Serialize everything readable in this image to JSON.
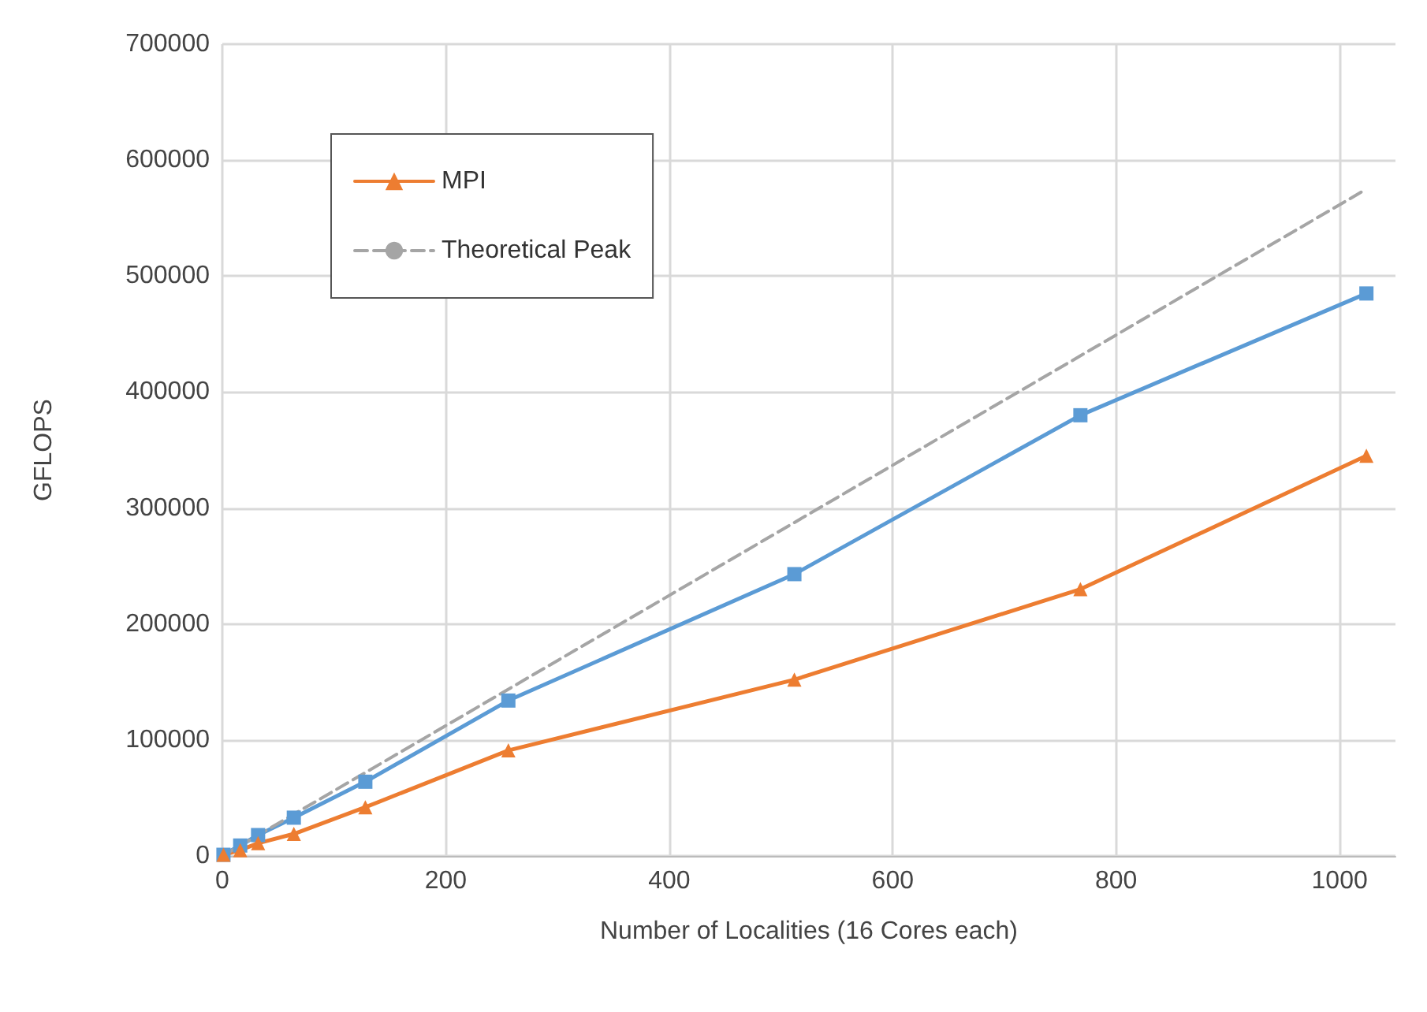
{
  "chart_data": {
    "type": "line",
    "xlabel": "Number of Localities (16 Cores each)",
    "ylabel": "GFLOPS",
    "xlim": [
      0,
      1050
    ],
    "xticks": [
      0,
      200,
      400,
      600,
      800,
      1000
    ],
    "ylim": [
      0,
      700000
    ],
    "yticks": [
      0,
      100000,
      200000,
      300000,
      400000,
      500000,
      600000,
      700000
    ],
    "grid": true,
    "legend": "top left",
    "series": [
      {
        "color": "#5b9bd5",
        "marker": "square",
        "line_style": "solid",
        "x": [
          1,
          16,
          32,
          64,
          128,
          256,
          512,
          768,
          1024
        ],
        "values": [
          1000,
          9000,
          18000,
          33000,
          64000,
          134000,
          243000,
          380000,
          485000
        ]
      },
      {
        "name": "MPI",
        "color": "#ed7d31",
        "marker": "triangle",
        "line_style": "solid",
        "x": [
          1,
          16,
          32,
          64,
          128,
          256,
          512,
          768,
          1024
        ],
        "values": [
          1000,
          5000,
          11000,
          19000,
          42000,
          91000,
          152000,
          230000,
          345000
        ]
      },
      {
        "name": "Theoretical Peak",
        "color": "#a5a5a5",
        "marker": "none",
        "line_style": "dashed",
        "x": [
          0,
          1024
        ],
        "values": [
          0,
          575000
        ]
      }
    ]
  }
}
